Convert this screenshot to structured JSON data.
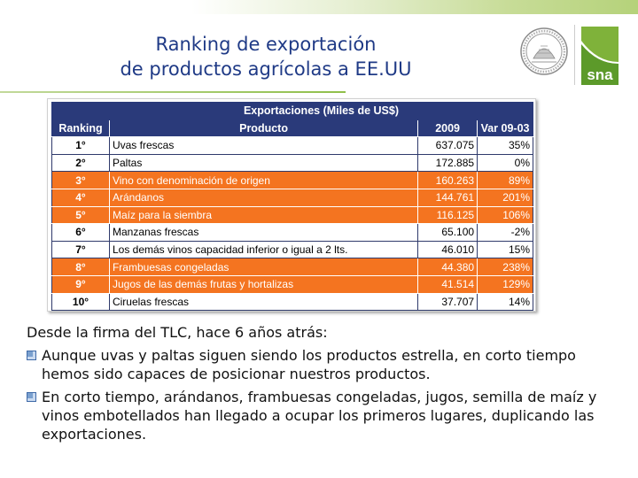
{
  "header": {
    "title_line1": "Ranking de exportación",
    "title_line2": "de productos agrícolas a EE.UU"
  },
  "logo": {
    "text": "sna",
    "icon": "sna-logo-icon",
    "seal_icon": "institutional-seal-icon"
  },
  "colors": {
    "header_bg": "#2a3a7a",
    "highlight_row": "#f47420",
    "title": "#1f3a86"
  },
  "table": {
    "group_header": "Exportaciones (Miles de US$)",
    "columns": [
      "Ranking",
      "Producto",
      "2009",
      "Var 09-03"
    ],
    "rows": [
      {
        "rank": "1°",
        "product": "Uvas frescas",
        "value": "637.075",
        "var": "35%",
        "highlight": false
      },
      {
        "rank": "2°",
        "product": "Paltas",
        "value": "172.885",
        "var": "0%",
        "highlight": false
      },
      {
        "rank": "3°",
        "product": "Vino con denominación de origen",
        "value": "160.263",
        "var": "89%",
        "highlight": true
      },
      {
        "rank": "4°",
        "product": "Arándanos",
        "value": "144.761",
        "var": "201%",
        "highlight": true
      },
      {
        "rank": "5°",
        "product": "Maíz para la siembra",
        "value": "116.125",
        "var": "106%",
        "highlight": true
      },
      {
        "rank": "6°",
        "product": "Manzanas frescas",
        "value": "65.100",
        "var": "-2%",
        "highlight": false
      },
      {
        "rank": "7°",
        "product": "Los demás vinos capacidad inferior o igual a 2 lts.",
        "value": "46.010",
        "var": "15%",
        "highlight": false
      },
      {
        "rank": "8°",
        "product": "Frambuesas congeladas",
        "value": "44.380",
        "var": "238%",
        "highlight": true
      },
      {
        "rank": "9°",
        "product": "Jugos de las demás frutas y hortalizas",
        "value": "41.514",
        "var": "129%",
        "highlight": true
      },
      {
        "rank": "10°",
        "product": "Ciruelas frescas",
        "value": "37.707",
        "var": "14%",
        "highlight": false
      }
    ]
  },
  "body": {
    "intro": "Desde la firma del TLC, hace 6 años atrás:",
    "bullets": [
      "Aunque uvas y paltas siguen siendo los productos estrella, en corto tiempo hemos sido capaces de posicionar nuestros productos.",
      "En corto tiempo, arándanos, frambuesas congeladas, jugos, semilla de maíz y vinos embotellados han llegado a ocupar los primeros lugares, duplicando las exportaciones."
    ]
  }
}
